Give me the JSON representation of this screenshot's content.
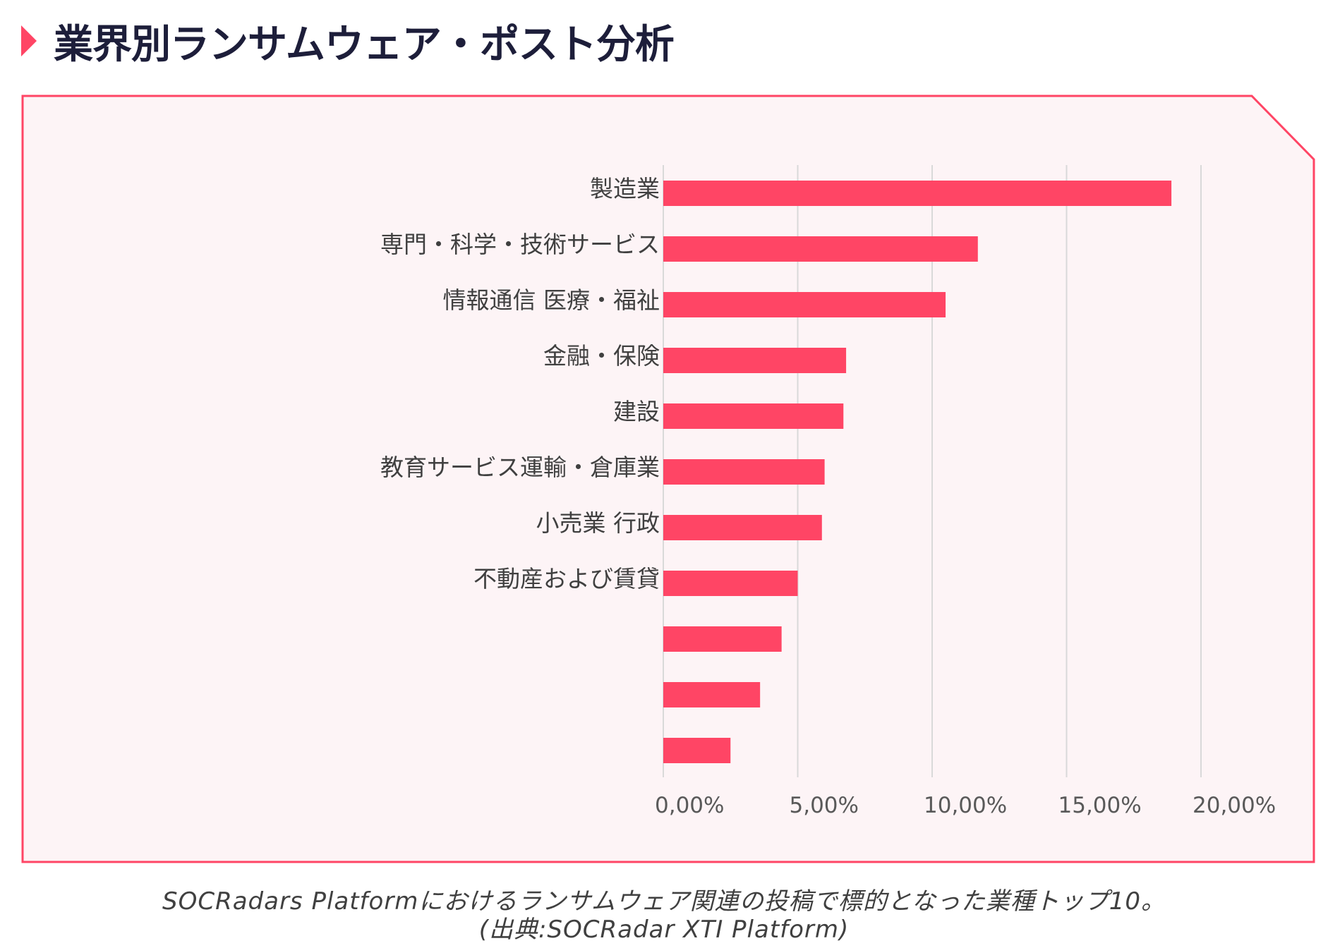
{
  "header": {
    "title": "業界別ランサムウェア・ポスト分析"
  },
  "colors": {
    "accent": "#ff4565",
    "frame_bg": "#fdf4f6",
    "frame_border": "#ff4565",
    "grid": "#d9d9d9"
  },
  "chart_data": {
    "type": "bar",
    "orientation": "horizontal",
    "categories": [
      "製造業",
      "専門・科学・技術サービス",
      "情報通信 医療・福祉",
      "金融・保険",
      "建設",
      "教育サービス運輸・倉庫業",
      "小売業 行政",
      "不動産および賃貸",
      "",
      "",
      ""
    ],
    "values": [
      18.9,
      11.7,
      10.5,
      6.8,
      6.7,
      6.0,
      5.9,
      5.0,
      4.4,
      3.6,
      2.5
    ],
    "xlim": [
      0,
      20
    ],
    "xticks": [
      "0,00%",
      "5,00%",
      "10,00%",
      "15,00%",
      "20,00%"
    ],
    "grid": true,
    "legend": "none"
  },
  "caption": {
    "line1": "SOCRadars Platformにおけるランサムウェア関連の投稿で標的となった業種トップ10。",
    "line2": "(出典:SOCRadar XTI Platform)"
  }
}
